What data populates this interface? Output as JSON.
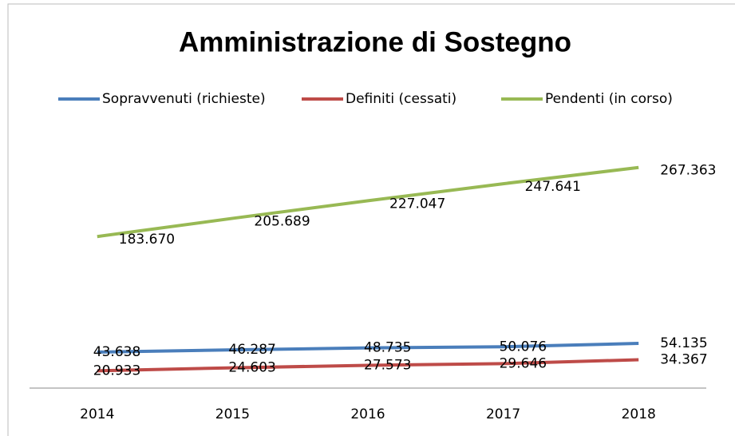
{
  "chart_data": {
    "type": "line",
    "title": "Amministrazione di Sostegno",
    "categories": [
      "2014",
      "2015",
      "2016",
      "2017",
      "2018"
    ],
    "series": [
      {
        "name": "Sopravvenuti (richieste)",
        "color": "#4a7ebb",
        "values": [
          43638,
          46287,
          48735,
          50076,
          54135
        ],
        "value_labels": [
          "43.638",
          "46.287",
          "48.735",
          "50.076",
          "54.135"
        ]
      },
      {
        "name": "Definiti (cessati)",
        "color": "#be4b48",
        "values": [
          20933,
          24603,
          27573,
          29646,
          34367
        ],
        "value_labels": [
          "20.933",
          "24.603",
          "27.573",
          "29.646",
          "34.367"
        ]
      },
      {
        "name": "Pendenti (in corso)",
        "color": "#98b954",
        "values": [
          183670,
          205689,
          227047,
          247641,
          267363
        ],
        "value_labels": [
          "183.670",
          "205.689",
          "227.047",
          "247.641",
          "267.363"
        ]
      }
    ],
    "ylim": [
      0,
      300000
    ]
  }
}
